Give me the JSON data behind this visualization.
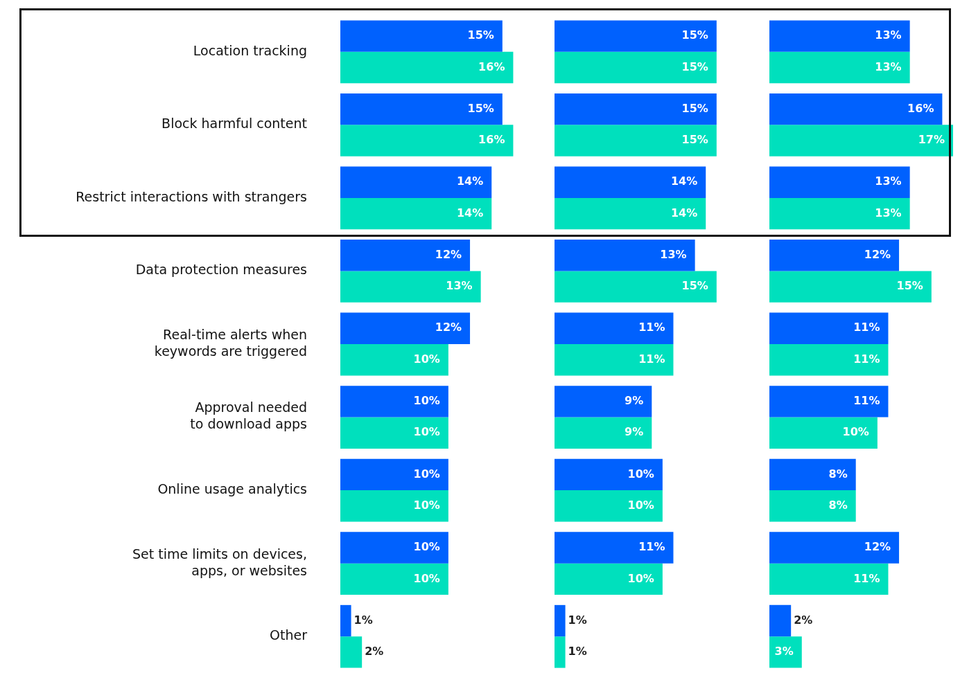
{
  "chart_data": [
    {
      "type": "bar",
      "orientation": "horizontal",
      "tick_labels": "y",
      "categories": [
        "Location tracking",
        "Block harmful content",
        "Restrict interactions with strangers",
        "Data protection measures",
        "Real-time alerts when\nkeywords are triggered",
        "Approval needed\nto download apps",
        "Online usage analytics",
        "Set time limits on devices,\napps, or websites",
        "Other"
      ],
      "series": [
        {
          "color": "#0061fe",
          "values": [
            15,
            15,
            14,
            12,
            12,
            10,
            10,
            10,
            1
          ],
          "value_labels": [
            "15%",
            "15%",
            "14%",
            "12%",
            "12%",
            "10%",
            "10%",
            "10%",
            "1%"
          ]
        },
        {
          "color": "#00e0bd",
          "values": [
            16,
            16,
            14,
            13,
            10,
            10,
            10,
            10,
            2
          ],
          "value_labels": [
            "16%",
            "16%",
            "14%",
            "13%",
            "10%",
            "10%",
            "10%",
            "10%",
            "2%"
          ]
        }
      ]
    },
    {
      "type": "bar",
      "orientation": "horizontal",
      "tick_labels": false,
      "categories": [
        null,
        null,
        null,
        null,
        null,
        null,
        null,
        null,
        null
      ],
      "series": [
        {
          "color": "#0061fe",
          "values": [
            15,
            15,
            14,
            13,
            11,
            9,
            10,
            11,
            1
          ],
          "value_labels": [
            "15%",
            "15%",
            "14%",
            "13%",
            "11%",
            "9%",
            "10%",
            "11%",
            "1%"
          ]
        },
        {
          "color": "#00e0bd",
          "values": [
            15,
            15,
            14,
            15,
            11,
            9,
            10,
            10,
            1
          ],
          "value_labels": [
            "15%",
            "15%",
            "14%",
            "15%",
            "11%",
            "9%",
            "10%",
            "10%",
            "1%"
          ]
        }
      ]
    },
    {
      "type": "bar",
      "orientation": "horizontal",
      "tick_labels": false,
      "categories": [
        null,
        null,
        null,
        null,
        null,
        null,
        null,
        null,
        null
      ],
      "series": [
        {
          "color": "#0061fe",
          "values": [
            13,
            16,
            13,
            12,
            11,
            11,
            8,
            12,
            2
          ],
          "value_labels": [
            "13%",
            "16%",
            "13%",
            "12%",
            "11%",
            "11%",
            "8%",
            "12%",
            "2%"
          ]
        },
        {
          "color": "#00e0bd",
          "values": [
            13,
            17,
            13,
            15,
            11,
            10,
            8,
            11,
            3
          ],
          "value_labels": [
            "13%",
            "17%",
            "13%",
            "15%",
            "11%",
            "10%",
            "8%",
            "11%",
            "3%"
          ]
        }
      ]
    }
  ]
}
